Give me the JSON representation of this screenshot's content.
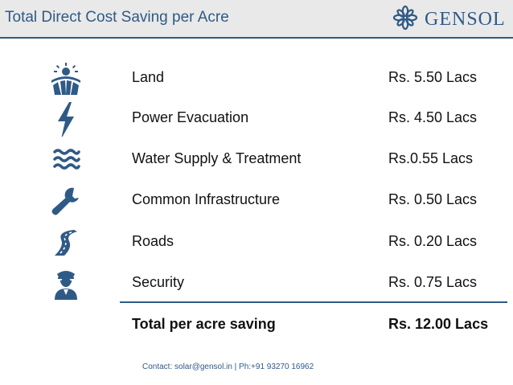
{
  "header": {
    "title": "Total Direct Cost Saving per Acre",
    "logo_text": "GENSOL",
    "accent_color": "#2f5a86"
  },
  "items": [
    {
      "label": "Land",
      "value": "Rs. 5.50 Lacs",
      "icon": "land-sun-field-icon"
    },
    {
      "label": "Power Evacuation",
      "value": "Rs. 4.50 Lacs",
      "icon": "lightning-bolt-icon"
    },
    {
      "label": "Water Supply & Treatment",
      "value": "Rs.0.55 Lacs",
      "icon": "water-waves-icon"
    },
    {
      "label": "Common Infrastructure",
      "value": "Rs. 0.50 Lacs",
      "icon": "wrench-icon"
    },
    {
      "label": "Roads",
      "value": "Rs. 0.20 Lacs",
      "icon": "road-icon"
    },
    {
      "label": "Security",
      "value": "Rs. 0.75 Lacs",
      "icon": "security-guard-icon"
    }
  ],
  "total": {
    "label": "Total per acre saving",
    "value": "Rs. 12.00 Lacs"
  },
  "footer": {
    "contact": "Contact: solar@gensol.in | Ph:+91 93270 16962"
  }
}
